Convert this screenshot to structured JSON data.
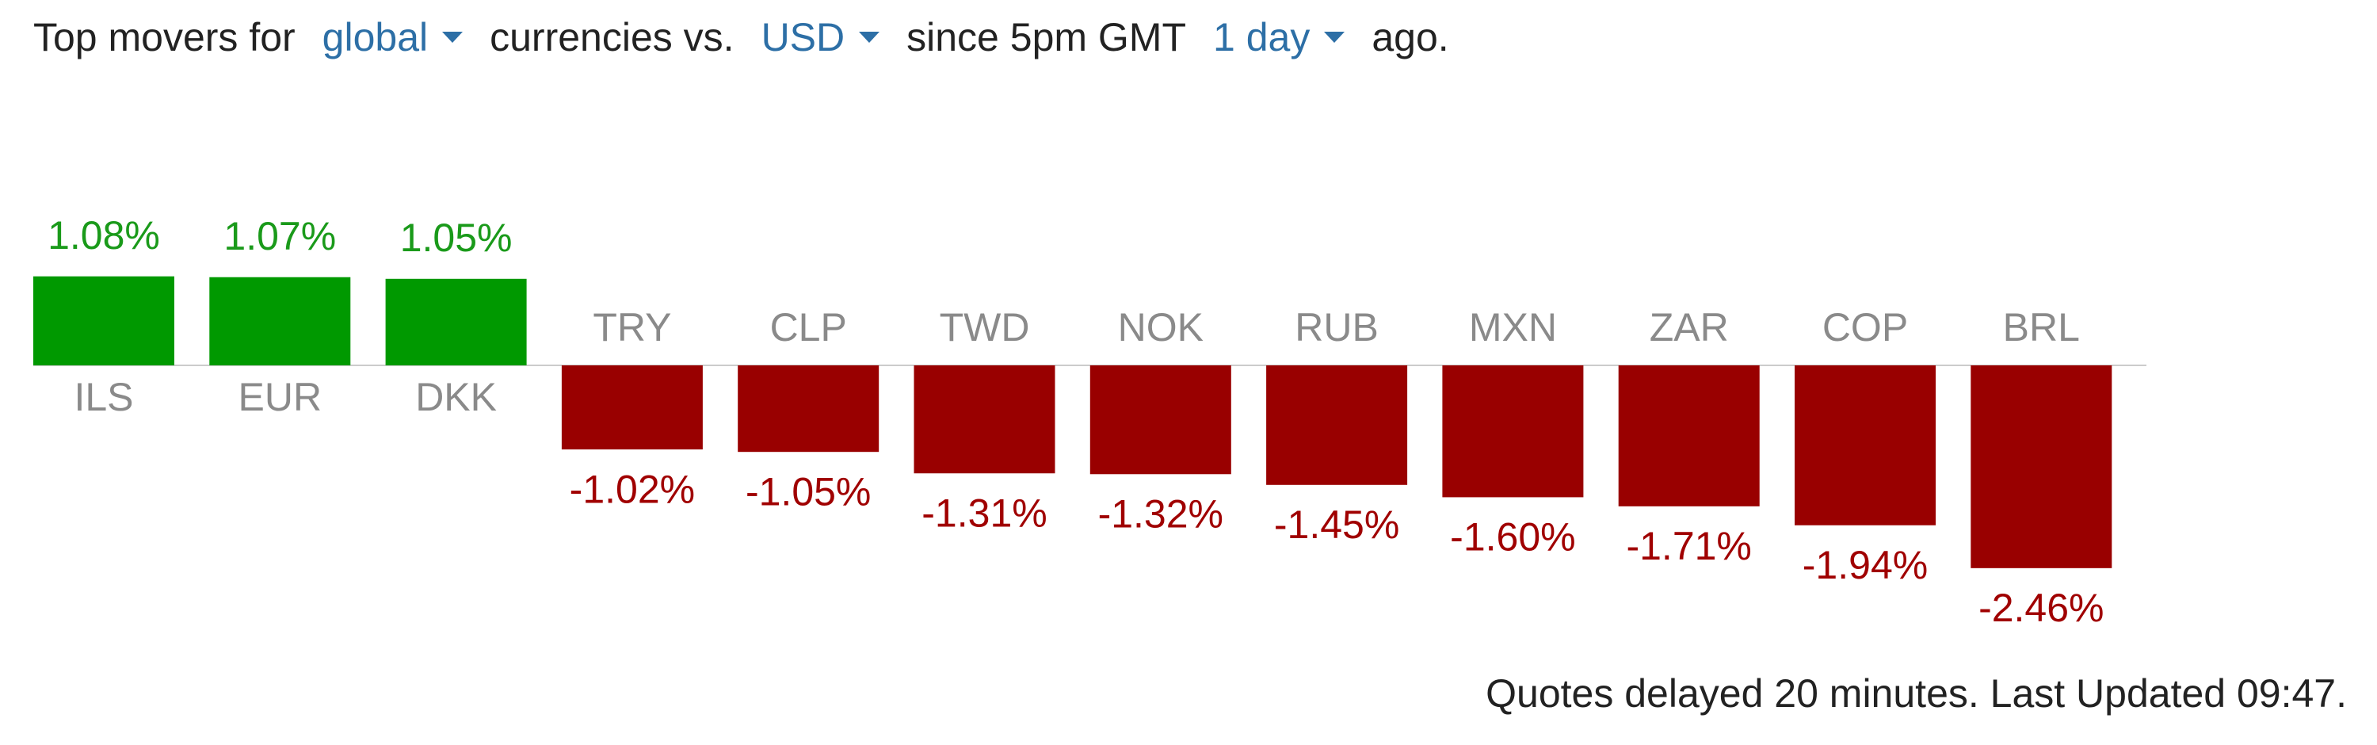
{
  "header": {
    "text_1": "Top movers for",
    "region": "global",
    "text_2": "currencies vs.",
    "base": "USD",
    "text_3": "since 5pm GMT",
    "period": "1 day",
    "text_4": "ago."
  },
  "chart_data": {
    "type": "bar",
    "categories": [
      "ILS",
      "EUR",
      "DKK",
      "TRY",
      "CLP",
      "TWD",
      "NOK",
      "RUB",
      "MXN",
      "ZAR",
      "COP",
      "BRL"
    ],
    "values": [
      1.08,
      1.07,
      1.05,
      -1.02,
      -1.05,
      -1.31,
      -1.32,
      -1.45,
      -1.6,
      -1.71,
      -1.94,
      -2.46
    ],
    "value_labels": [
      "1.08%",
      "1.07%",
      "1.05%",
      "-1.02%",
      "-1.05%",
      "-1.31%",
      "-1.32%",
      "-1.45%",
      "-1.60%",
      "-1.71%",
      "-1.94%",
      "-2.46%"
    ],
    "positive_color": "#009900",
    "negative_color": "#990000"
  },
  "footer": "Quotes delayed 20 minutes. Last Updated 09:47."
}
